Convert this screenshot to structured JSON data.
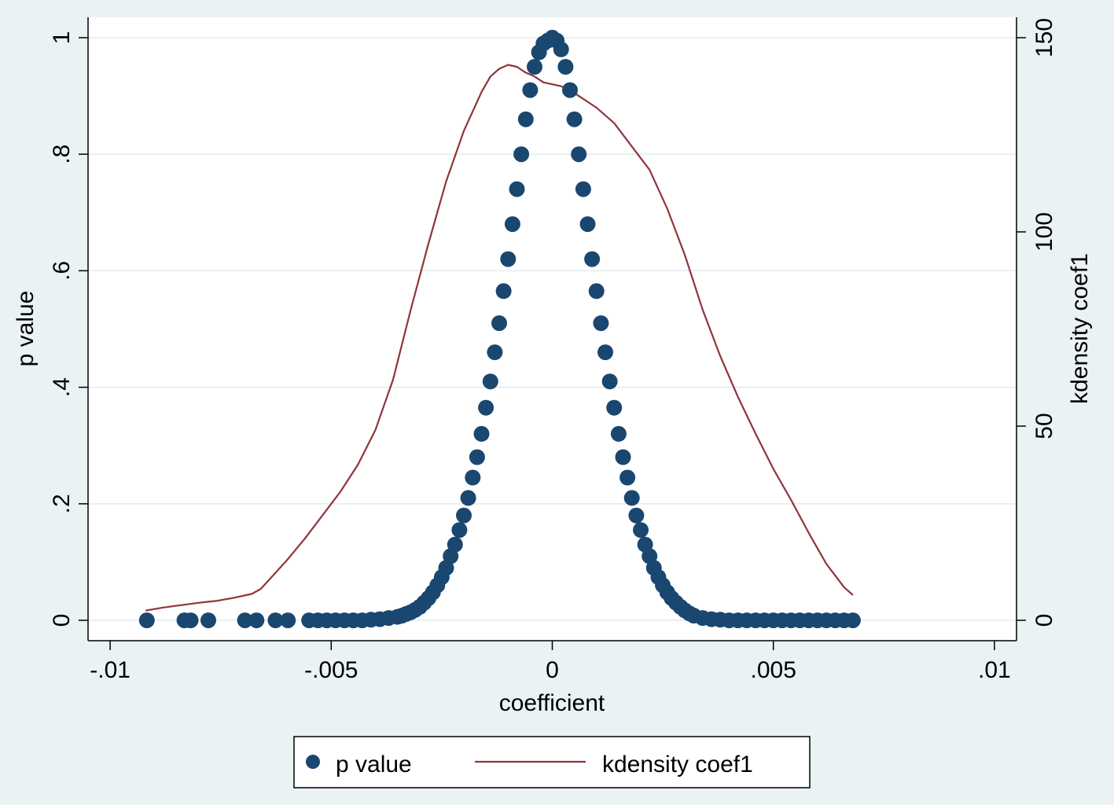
{
  "colors": {
    "background": "#eaf2f3",
    "plot_background": "#ffffff",
    "grid": "#e1ebef",
    "series_pvalue": "#1a476f",
    "series_kdensity": "#90353b"
  },
  "chart_data": {
    "type": "scatter",
    "title": "",
    "xlabel": "coefficient",
    "ylabel": "p value",
    "y2label": "kdensity coef1",
    "xlim": [
      -0.0105,
      0.0105
    ],
    "ylim": [
      -0.035,
      1.035
    ],
    "y2lim": [
      -5.25,
      155.25
    ],
    "x_ticks": [
      {
        "value": -0.01,
        "label": "-.01"
      },
      {
        "value": -0.005,
        "label": "-.005"
      },
      {
        "value": 0,
        "label": "0"
      },
      {
        "value": 0.005,
        "label": ".005"
      },
      {
        "value": 0.01,
        "label": ".01"
      }
    ],
    "y_ticks": [
      {
        "value": 0,
        "label": "0"
      },
      {
        "value": 0.2,
        "label": ".2"
      },
      {
        "value": 0.4,
        "label": ".4"
      },
      {
        "value": 0.6,
        "label": ".6"
      },
      {
        "value": 0.8,
        "label": ".8"
      },
      {
        "value": 1,
        "label": "1"
      }
    ],
    "y2_ticks": [
      {
        "value": 0,
        "label": "0"
      },
      {
        "value": 50,
        "label": "50"
      },
      {
        "value": 100,
        "label": "100"
      },
      {
        "value": 150,
        "label": "150"
      }
    ],
    "grid": true,
    "legend_position": "bottom",
    "series": [
      {
        "name": "p value",
        "type": "scatter",
        "axis": "left",
        "x": [
          -0.00917,
          -0.00832,
          -0.00818,
          -0.00778,
          -0.00695,
          -0.00669,
          -0.00626,
          -0.00598,
          -0.0055,
          -0.0053,
          -0.0051,
          -0.0049,
          -0.0047,
          -0.0045,
          -0.0043,
          -0.0041,
          -0.0039,
          -0.0037,
          -0.0035,
          -0.0034,
          -0.0033,
          -0.0032,
          -0.0031,
          -0.003,
          -0.0029,
          -0.0028,
          -0.0027,
          -0.0026,
          -0.0025,
          -0.0024,
          -0.0023,
          -0.0022,
          -0.0021,
          -0.002,
          -0.0019,
          -0.0018,
          -0.0017,
          -0.0016,
          -0.0015,
          -0.0014,
          -0.0013,
          -0.0012,
          -0.0011,
          -0.001,
          -0.0009,
          -0.0008,
          -0.0007,
          -0.0006,
          -0.0005,
          -0.0004,
          -0.0003,
          -0.0002,
          -0.0001,
          0.0,
          0.0001,
          0.0002,
          0.0003,
          0.0004,
          0.0005,
          0.0006,
          0.0007,
          0.0008,
          0.0009,
          0.001,
          0.0011,
          0.0012,
          0.0013,
          0.0014,
          0.0015,
          0.0016,
          0.0017,
          0.0018,
          0.0019,
          0.002,
          0.0021,
          0.0022,
          0.0023,
          0.0024,
          0.0025,
          0.0026,
          0.0027,
          0.0028,
          0.0029,
          0.003,
          0.0031,
          0.0032,
          0.0034,
          0.0036,
          0.0038,
          0.004,
          0.0042,
          0.0044,
          0.0046,
          0.0048,
          0.005,
          0.0052,
          0.0054,
          0.0056,
          0.0058,
          0.006,
          0.0062,
          0.0064,
          0.0066,
          0.0068
        ],
        "y": [
          0.0,
          0.0,
          0.0,
          0.0,
          0.0,
          0.0,
          0.0,
          0.0,
          0.0,
          0.0,
          0.0,
          0.0,
          0.0,
          0.0,
          0.0,
          0.001,
          0.002,
          0.004,
          0.006,
          0.008,
          0.011,
          0.014,
          0.018,
          0.023,
          0.03,
          0.038,
          0.048,
          0.06,
          0.074,
          0.09,
          0.11,
          0.13,
          0.155,
          0.18,
          0.21,
          0.245,
          0.28,
          0.32,
          0.365,
          0.41,
          0.46,
          0.51,
          0.565,
          0.62,
          0.68,
          0.74,
          0.8,
          0.86,
          0.91,
          0.95,
          0.975,
          0.99,
          0.995,
          1.0,
          0.995,
          0.98,
          0.95,
          0.91,
          0.86,
          0.8,
          0.74,
          0.68,
          0.62,
          0.565,
          0.51,
          0.46,
          0.41,
          0.365,
          0.32,
          0.28,
          0.245,
          0.21,
          0.18,
          0.155,
          0.13,
          0.11,
          0.09,
          0.074,
          0.06,
          0.048,
          0.038,
          0.03,
          0.023,
          0.017,
          0.012,
          0.008,
          0.004,
          0.002,
          0.001,
          0.0,
          0.0,
          0.0,
          0.0,
          0.0,
          0.0,
          0.0,
          0.0,
          0.0,
          0.0,
          0.0,
          0.0,
          0.0,
          0.0,
          0.0
        ]
      },
      {
        "name": "kdensity coef1",
        "type": "line",
        "axis": "right",
        "x": [
          -0.0092,
          -0.0088,
          -0.0084,
          -0.008,
          -0.0076,
          -0.0072,
          -0.0068,
          -0.0066,
          -0.0064,
          -0.006,
          -0.0056,
          -0.0052,
          -0.0048,
          -0.0044,
          -0.004,
          -0.0036,
          -0.0032,
          -0.0028,
          -0.0024,
          -0.002,
          -0.0016,
          -0.0014,
          -0.0012,
          -0.001,
          -0.0008,
          -0.0006,
          -0.0004,
          -0.0002,
          0.0,
          0.0002,
          0.0004,
          0.0006,
          0.0008,
          0.001,
          0.0014,
          0.0018,
          0.0022,
          0.0026,
          0.003,
          0.0034,
          0.0038,
          0.0042,
          0.0046,
          0.005,
          0.0054,
          0.0058,
          0.0062,
          0.0066,
          0.0068
        ],
        "y": [
          2.5,
          3.3,
          3.9,
          4.5,
          5.0,
          5.8,
          6.8,
          8.0,
          10.5,
          15.5,
          21.0,
          27.0,
          33.0,
          40.0,
          49.0,
          62.0,
          80.0,
          97.0,
          113.0,
          126.0,
          136.0,
          140.0,
          142.0,
          143.0,
          142.5,
          141.0,
          140.0,
          138.5,
          138.0,
          137.5,
          136.5,
          135.0,
          133.5,
          132.0,
          128.0,
          122.0,
          116.0,
          106.0,
          94.0,
          80.0,
          68.0,
          57.5,
          48.0,
          39.0,
          31.0,
          22.5,
          14.5,
          8.5,
          6.5
        ]
      }
    ]
  },
  "legend": {
    "items": [
      {
        "label": "p value"
      },
      {
        "label": "kdensity coef1"
      }
    ]
  }
}
